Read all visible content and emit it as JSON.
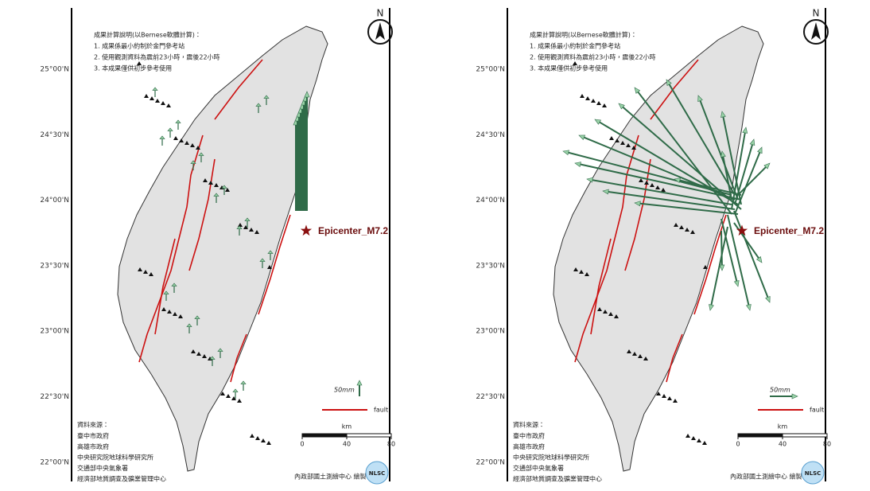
{
  "panels": [
    {
      "north": "N",
      "notes": {
        "title": "成果計算說明(以Bernese軟體計算)：",
        "items": [
          "1. 成果係最小約制於金門參考站",
          "2. 使用觀測資料為震前23小時，震後22小時",
          "3. 本成果僅供初步參考使用"
        ]
      },
      "latitudes": [
        "25°00'N",
        "24°30'N",
        "24°00'N",
        "23°30'N",
        "23°00'N",
        "22°30'N",
        "22°00'N"
      ],
      "epicenter": "Epicenter_M7.2",
      "legend": {
        "vector": "50mm",
        "fault": "fault"
      },
      "scale": {
        "unit": "km",
        "ticks": [
          0,
          40,
          80
        ]
      },
      "sources": {
        "title": "資料來源：",
        "items": [
          "臺中市政府",
          "高雄市政府",
          "中央研究院地球科學研究所",
          "交通部中央氣象署",
          "經濟部地質調查及礦業管理中心"
        ]
      },
      "credit": "內政部國土測繪中心 繪製",
      "logo": "NLSC"
    },
    {
      "north": "N",
      "notes": {
        "title": "成果計算說明(以Bernese軟體計算)：",
        "items": [
          "1. 成果係最小約制於金門參考站",
          "2. 使用觀測資料為震前23小時，震後22小時",
          "3. 本成果僅供初步參考使用"
        ]
      },
      "latitudes": [
        "25°00'N",
        "24°30'N",
        "24°00'N",
        "23°30'N",
        "23°00'N",
        "22°30'N",
        "22°00'N"
      ],
      "epicenter": "Epicenter_M7.2",
      "legend": {
        "vector": "50mm",
        "fault": "fault"
      },
      "scale": {
        "unit": "km",
        "ticks": [
          0,
          40,
          80
        ]
      },
      "sources": {
        "title": "資料來源：",
        "items": [
          "臺中市政府",
          "高雄市政府",
          "中央研究院地球科學研究所",
          "交通部中央氣象署",
          "經濟部地質調查及礦業管理中心"
        ]
      },
      "credit": "內政部國土測繪中心 繪製",
      "logo": "NLSC"
    }
  ]
}
